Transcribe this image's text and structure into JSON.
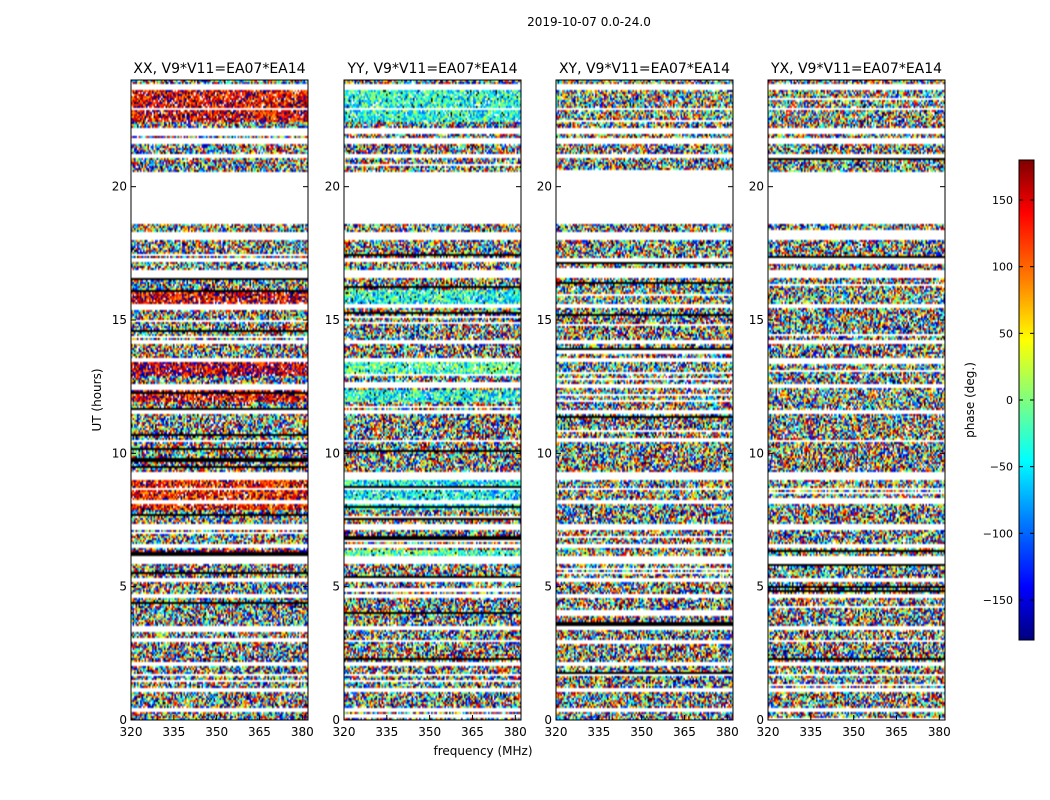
{
  "chart_data": {
    "type": "heatmap",
    "suptitle": "2019-10-07 0.0-24.0",
    "xlabel": "frequency (MHz)",
    "ylabel": "UT (hours)",
    "xlim": [
      320,
      382
    ],
    "ylim": [
      0,
      24
    ],
    "x_ticks": [
      320,
      335,
      350,
      365,
      380
    ],
    "y_ticks": [
      0,
      5,
      10,
      15,
      20
    ],
    "panels": [
      {
        "title": "XX, V9*V11=EA07*EA14",
        "bias": 140
      },
      {
        "title": "YY, V9*V11=EA07*EA14",
        "bias": -35
      },
      {
        "title": "XY, V9*V11=EA07*EA14",
        "bias": 0
      },
      {
        "title": "YX, V9*V11=EA07*EA14",
        "bias": 0
      }
    ],
    "colorbar": {
      "label": "phase (deg.)",
      "range": [
        -180,
        180
      ],
      "ticks": [
        150,
        100,
        50,
        0,
        -50,
        -100,
        -150
      ],
      "colormap": "jet",
      "colors": [
        "#00007f",
        "#0000ff",
        "#007fff",
        "#00ffff",
        "#7fff7f",
        "#ffff00",
        "#ff7f00",
        "#ff0000",
        "#7f0000"
      ]
    },
    "flagged_ut_ranges": [
      [
        20.55,
        18.6
      ],
      [
        6.15,
        5.85
      ],
      [
        9.3,
        9.0
      ],
      [
        3.55,
        3.4
      ],
      [
        2.2,
        2.05
      ],
      [
        21.8,
        21.6
      ],
      [
        23.85,
        23.65
      ],
      [
        22.2,
        22.0
      ],
      [
        16.9,
        16.6
      ],
      [
        13.55,
        13.4
      ],
      [
        7.35,
        7.15
      ],
      [
        4.7,
        4.55
      ],
      [
        0.45,
        0.3
      ],
      [
        18.3,
        18.0
      ],
      [
        11.6,
        11.45
      ],
      [
        1.2,
        1.05
      ],
      [
        14.25,
        14.1
      ],
      [
        15.6,
        15.45
      ],
      [
        12.6,
        12.45
      ],
      [
        8.25,
        8.1
      ],
      [
        6.6,
        6.45
      ],
      [
        5.3,
        5.2
      ],
      [
        3.0,
        2.9
      ],
      [
        17.3,
        17.15
      ],
      [
        10.5,
        10.4
      ],
      [
        19.1,
        19.0
      ],
      [
        22.95,
        22.85
      ],
      [
        21.2,
        21.1
      ],
      [
        8.7,
        8.6
      ],
      [
        1.75,
        1.65
      ]
    ],
    "coherent_ut_bands": [
      {
        "range": [
          23.6,
          22.4
        ],
        "offset": 0
      },
      {
        "range": [
          16.1,
          15.6
        ],
        "offset": 0
      },
      {
        "range": [
          13.4,
          12.9
        ],
        "offset": 15
      },
      {
        "range": [
          12.4,
          11.9
        ],
        "offset": 0
      },
      {
        "range": [
          9.0,
          7.9
        ],
        "offset": -10
      },
      {
        "range": [
          6.4,
          6.1
        ],
        "offset": 20
      }
    ]
  }
}
